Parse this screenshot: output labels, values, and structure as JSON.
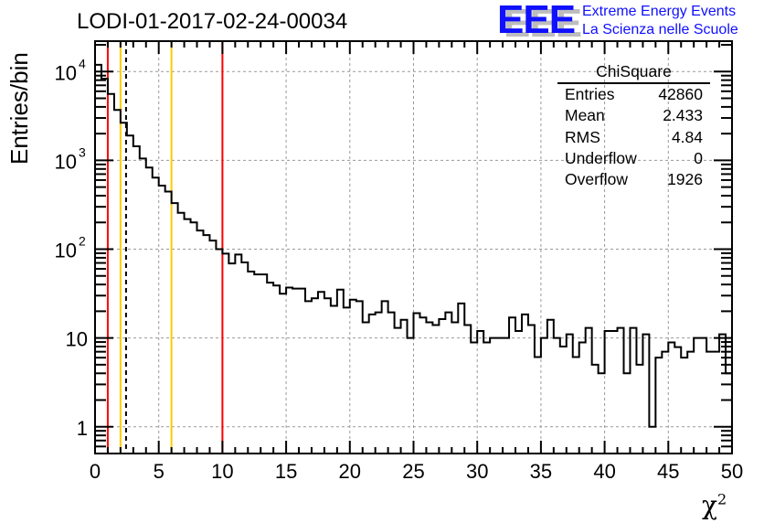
{
  "title": "LODI-01-2017-02-24-00034",
  "logo": {
    "letters": "EEE",
    "line1": "Extreme Energy Events",
    "line2": "La Scienza nelle Scuole"
  },
  "stats": {
    "name": "ChiSquare",
    "rows": [
      {
        "label": "Entries",
        "value": "42860"
      },
      {
        "label": "Mean",
        "value": "2.433"
      },
      {
        "label": "RMS",
        "value": "4.84"
      },
      {
        "label": "Underflow",
        "value": "0"
      },
      {
        "label": "Overflow",
        "value": "1926"
      }
    ]
  },
  "colors": {
    "red": "#ff0000",
    "yellow": "#ffcc00",
    "hist": "#000000",
    "grid": "#999999"
  },
  "chart_data": {
    "type": "histogram",
    "title": "LODI-01-2017-02-24-00034",
    "xlabel": "χ",
    "xlabel_sup": "2",
    "ylabel": "Entries/bin",
    "xlim": [
      0,
      50
    ],
    "ylim": [
      0.5,
      22000
    ],
    "yscale": "log",
    "grid": true,
    "bin_width": 0.5,
    "x_ticks": [
      "0",
      "5",
      "10",
      "15",
      "20",
      "25",
      "30",
      "35",
      "40",
      "45",
      "50"
    ],
    "y_ticks": [
      {
        "value": 1,
        "base": "1",
        "exp": ""
      },
      {
        "value": 10,
        "base": "10",
        "exp": ""
      },
      {
        "value": 100,
        "base": "10",
        "exp": "2"
      },
      {
        "value": 1000,
        "base": "10",
        "exp": "3"
      },
      {
        "value": 10000,
        "base": "10",
        "exp": "4"
      }
    ],
    "values": [
      11900,
      8300,
      5600,
      3700,
      2650,
      1900,
      1440,
      1050,
      830,
      640,
      520,
      445,
      330,
      257,
      218,
      200,
      162,
      144,
      125,
      100,
      89,
      69,
      87,
      71,
      56,
      52,
      52,
      42,
      39,
      31.5,
      37,
      36,
      36,
      26,
      28,
      33,
      28,
      23,
      35,
      22,
      27,
      26,
      15,
      18.4,
      19.4,
      26,
      19.4,
      13,
      16,
      10,
      19,
      17,
      15,
      14,
      16.3,
      19.4,
      15,
      24.5,
      14,
      8.9,
      12,
      8.9,
      10,
      10,
      10,
      17,
      12,
      18.4,
      14,
      6.1,
      10,
      16,
      10,
      8,
      11,
      6.1,
      8.9,
      13,
      5,
      4,
      12,
      12,
      13,
      4,
      13,
      5,
      11,
      1,
      6,
      7,
      8.9,
      7.9,
      6,
      7,
      10,
      10,
      7,
      7,
      11,
      4
    ],
    "vertical_lines": [
      {
        "x": 1,
        "color": "red",
        "style": "solid"
      },
      {
        "x": 2,
        "color": "yellow",
        "style": "solid"
      },
      {
        "x": 2.433,
        "color": "black",
        "style": "dashed"
      },
      {
        "x": 6,
        "color": "yellow",
        "style": "solid"
      },
      {
        "x": 10,
        "color": "red",
        "style": "solid"
      }
    ]
  }
}
